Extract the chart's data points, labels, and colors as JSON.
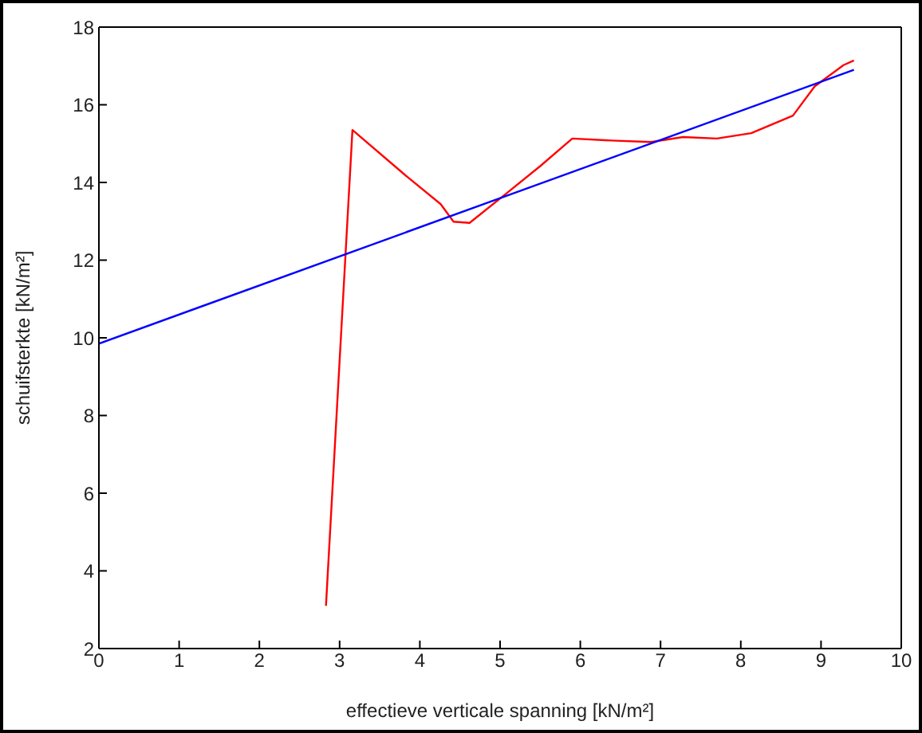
{
  "chart_data": {
    "type": "line",
    "xlabel": "effectieve verticale spanning [kN/m²]",
    "ylabel": "schuifsterkte [kN/m²]",
    "xlim": [
      0,
      10
    ],
    "xticks": [
      0,
      1,
      2,
      3,
      4,
      5,
      6,
      7,
      8,
      9,
      10
    ],
    "ylim": [
      2,
      18
    ],
    "yticks": [
      2,
      4,
      6,
      8,
      10,
      12,
      14,
      16,
      18
    ],
    "series": [
      {
        "color": "#ff0000",
        "x": [
          2.83,
          3.16,
          3.8,
          4.26,
          4.42,
          4.62,
          5.05,
          5.5,
          5.9,
          6.39,
          6.88,
          7.28,
          7.7,
          8.13,
          8.65,
          8.92,
          9.28,
          9.41
        ],
        "values": [
          3.1,
          15.35,
          14.22,
          13.44,
          12.99,
          12.96,
          13.67,
          14.42,
          15.13,
          15.08,
          15.04,
          15.17,
          15.13,
          15.27,
          15.72,
          16.47,
          17.02,
          17.14
        ]
      },
      {
        "color": "#0000ff",
        "x": [
          0,
          9.41
        ],
        "values": [
          9.85,
          16.9
        ]
      }
    ]
  }
}
